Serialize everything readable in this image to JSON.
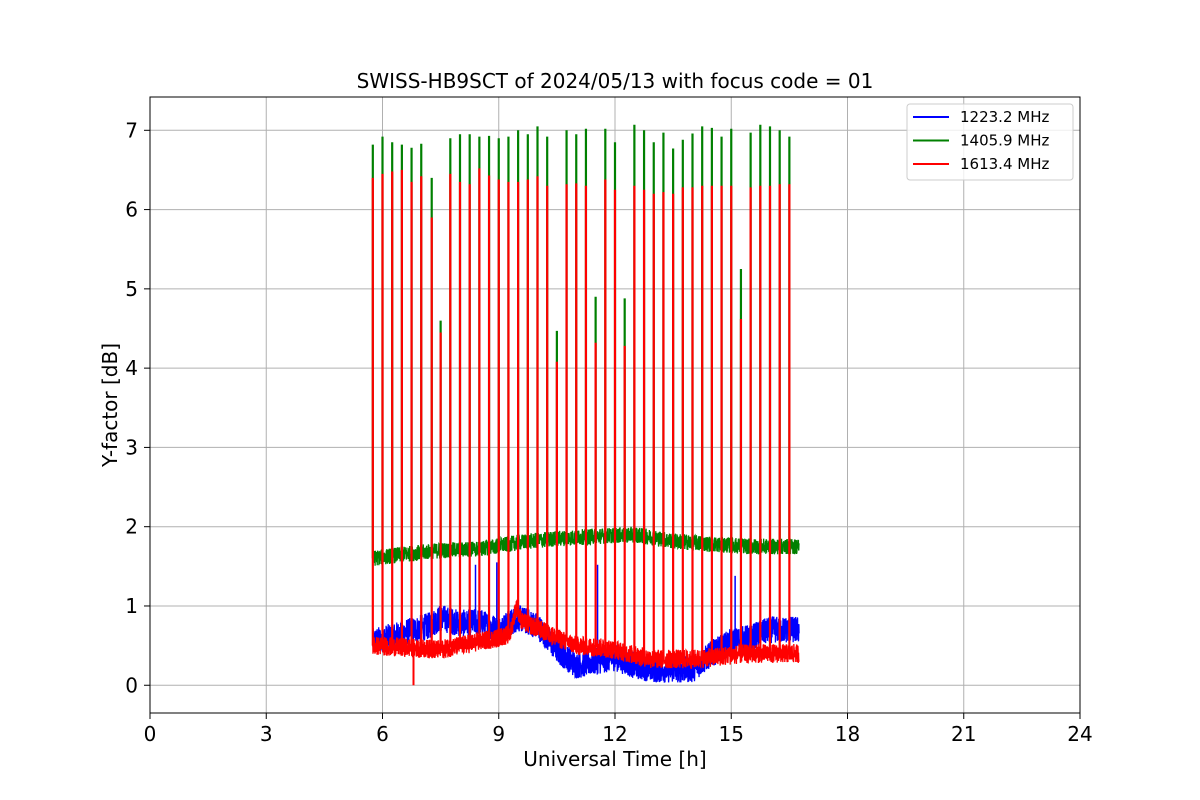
{
  "chart_data": {
    "type": "line",
    "title": "SWISS-HB9SCT of 2024/05/13 with focus code = 01",
    "xlabel": "Universal Time [h]",
    "ylabel": "Y-factor [dB]",
    "xlim": [
      0,
      24
    ],
    "ylim": [
      -0.35,
      7.42
    ],
    "xticks": [
      0,
      3,
      6,
      9,
      12,
      15,
      18,
      21,
      24
    ],
    "yticks": [
      0,
      1,
      2,
      3,
      4,
      5,
      6,
      7
    ],
    "grid": true,
    "legend_position": "top-right",
    "data_range": [
      5.75,
      16.75
    ],
    "series": [
      {
        "name": "1223.2 MHz",
        "color": "#0000ff",
        "baseline": [
          [
            5.75,
            0.55
          ],
          [
            6.5,
            0.65
          ],
          [
            7.2,
            0.75
          ],
          [
            7.5,
            0.85
          ],
          [
            8.0,
            0.78
          ],
          [
            8.5,
            0.8
          ],
          [
            9.0,
            0.7
          ],
          [
            9.5,
            0.85
          ],
          [
            10.0,
            0.75
          ],
          [
            10.5,
            0.45
          ],
          [
            11.0,
            0.25
          ],
          [
            11.5,
            0.3
          ],
          [
            12.0,
            0.35
          ],
          [
            12.5,
            0.25
          ],
          [
            13.0,
            0.2
          ],
          [
            13.5,
            0.2
          ],
          [
            14.0,
            0.2
          ],
          [
            14.5,
            0.4
          ],
          [
            15.0,
            0.55
          ],
          [
            15.5,
            0.6
          ],
          [
            16.0,
            0.7
          ],
          [
            16.75,
            0.7
          ]
        ],
        "noise": 0.17,
        "spikes": [
          [
            8.4,
            1.52
          ],
          [
            8.95,
            1.55
          ],
          [
            11.55,
            1.52
          ],
          [
            15.1,
            1.38
          ]
        ]
      },
      {
        "name": "1405.9 MHz",
        "color": "#008000",
        "baseline": [
          [
            5.75,
            1.6
          ],
          [
            6.5,
            1.65
          ],
          [
            7.5,
            1.7
          ],
          [
            8.5,
            1.72
          ],
          [
            9.5,
            1.8
          ],
          [
            10.5,
            1.85
          ],
          [
            11.5,
            1.88
          ],
          [
            12.5,
            1.9
          ],
          [
            13.5,
            1.82
          ],
          [
            14.5,
            1.78
          ],
          [
            15.5,
            1.75
          ],
          [
            16.75,
            1.75
          ]
        ],
        "noise": 0.1,
        "pulses": [
          [
            5.75,
            6.82
          ],
          [
            6.0,
            6.92
          ],
          [
            6.25,
            6.85
          ],
          [
            6.5,
            6.82
          ],
          [
            6.75,
            6.78
          ],
          [
            7.0,
            6.83
          ],
          [
            7.27,
            6.4
          ],
          [
            7.5,
            4.6
          ],
          [
            7.75,
            6.9
          ],
          [
            8.0,
            6.95
          ],
          [
            8.25,
            6.95
          ],
          [
            8.5,
            6.92
          ],
          [
            8.75,
            6.93
          ],
          [
            9.0,
            6.9
          ],
          [
            9.25,
            6.92
          ],
          [
            9.5,
            7.0
          ],
          [
            9.75,
            6.95
          ],
          [
            10.0,
            7.05
          ],
          [
            10.25,
            6.92
          ],
          [
            10.5,
            4.47
          ],
          [
            10.75,
            7.0
          ],
          [
            11.0,
            6.95
          ],
          [
            11.25,
            7.02
          ],
          [
            11.5,
            4.9
          ],
          [
            11.75,
            7.02
          ],
          [
            12.0,
            6.85
          ],
          [
            12.25,
            4.88
          ],
          [
            12.5,
            7.07
          ],
          [
            12.75,
            7.0
          ],
          [
            13.0,
            6.85
          ],
          [
            13.25,
            6.97
          ],
          [
            13.5,
            6.77
          ],
          [
            13.75,
            6.88
          ],
          [
            14.0,
            6.96
          ],
          [
            14.25,
            7.05
          ],
          [
            14.5,
            7.03
          ],
          [
            14.75,
            6.92
          ],
          [
            15.0,
            7.02
          ],
          [
            15.25,
            5.25
          ],
          [
            15.5,
            6.97
          ],
          [
            15.75,
            7.07
          ],
          [
            16.0,
            7.05
          ],
          [
            16.25,
            7.0
          ],
          [
            16.5,
            6.92
          ]
        ]
      },
      {
        "name": "1613.4 MHz",
        "color": "#ff0000",
        "baseline": [
          [
            5.75,
            0.5
          ],
          [
            6.5,
            0.48
          ],
          [
            7.5,
            0.45
          ],
          [
            8.0,
            0.5
          ],
          [
            8.5,
            0.55
          ],
          [
            9.0,
            0.6
          ],
          [
            9.3,
            0.65
          ],
          [
            9.45,
            1.0
          ],
          [
            9.6,
            0.8
          ],
          [
            10.0,
            0.72
          ],
          [
            10.5,
            0.6
          ],
          [
            11.0,
            0.5
          ],
          [
            11.5,
            0.48
          ],
          [
            12.0,
            0.45
          ],
          [
            12.5,
            0.38
          ],
          [
            13.0,
            0.33
          ],
          [
            13.5,
            0.33
          ],
          [
            14.0,
            0.33
          ],
          [
            14.5,
            0.35
          ],
          [
            15.0,
            0.38
          ],
          [
            15.5,
            0.4
          ],
          [
            16.0,
            0.4
          ],
          [
            16.75,
            0.4
          ]
        ],
        "noise": 0.12,
        "pulses": [
          [
            5.75,
            6.4
          ],
          [
            6.0,
            6.45
          ],
          [
            6.25,
            6.48
          ],
          [
            6.5,
            6.5
          ],
          [
            6.75,
            6.35
          ],
          [
            7.0,
            6.42
          ],
          [
            7.27,
            5.9
          ],
          [
            7.5,
            4.45
          ],
          [
            7.75,
            6.45
          ],
          [
            8.0,
            6.35
          ],
          [
            8.25,
            6.32
          ],
          [
            8.5,
            6.52
          ],
          [
            8.75,
            6.43
          ],
          [
            9.0,
            6.38
          ],
          [
            9.25,
            6.35
          ],
          [
            9.5,
            6.35
          ],
          [
            9.75,
            6.38
          ],
          [
            10.0,
            6.42
          ],
          [
            10.25,
            6.3
          ],
          [
            10.5,
            4.08
          ],
          [
            10.75,
            6.32
          ],
          [
            11.0,
            6.33
          ],
          [
            11.25,
            6.3
          ],
          [
            11.5,
            4.32
          ],
          [
            11.75,
            6.38
          ],
          [
            12.0,
            6.25
          ],
          [
            12.25,
            4.28
          ],
          [
            12.5,
            6.3
          ],
          [
            12.75,
            6.25
          ],
          [
            13.0,
            6.2
          ],
          [
            13.25,
            6.22
          ],
          [
            13.5,
            6.2
          ],
          [
            13.75,
            6.28
          ],
          [
            14.0,
            6.28
          ],
          [
            14.25,
            6.3
          ],
          [
            14.5,
            6.3
          ],
          [
            14.75,
            6.3
          ],
          [
            15.0,
            6.3
          ],
          [
            15.25,
            4.62
          ],
          [
            15.5,
            6.28
          ],
          [
            15.75,
            6.3
          ],
          [
            16.0,
            6.3
          ],
          [
            16.25,
            6.32
          ],
          [
            16.5,
            6.32
          ]
        ],
        "dips": [
          [
            6.8,
            0.0
          ]
        ]
      }
    ]
  }
}
